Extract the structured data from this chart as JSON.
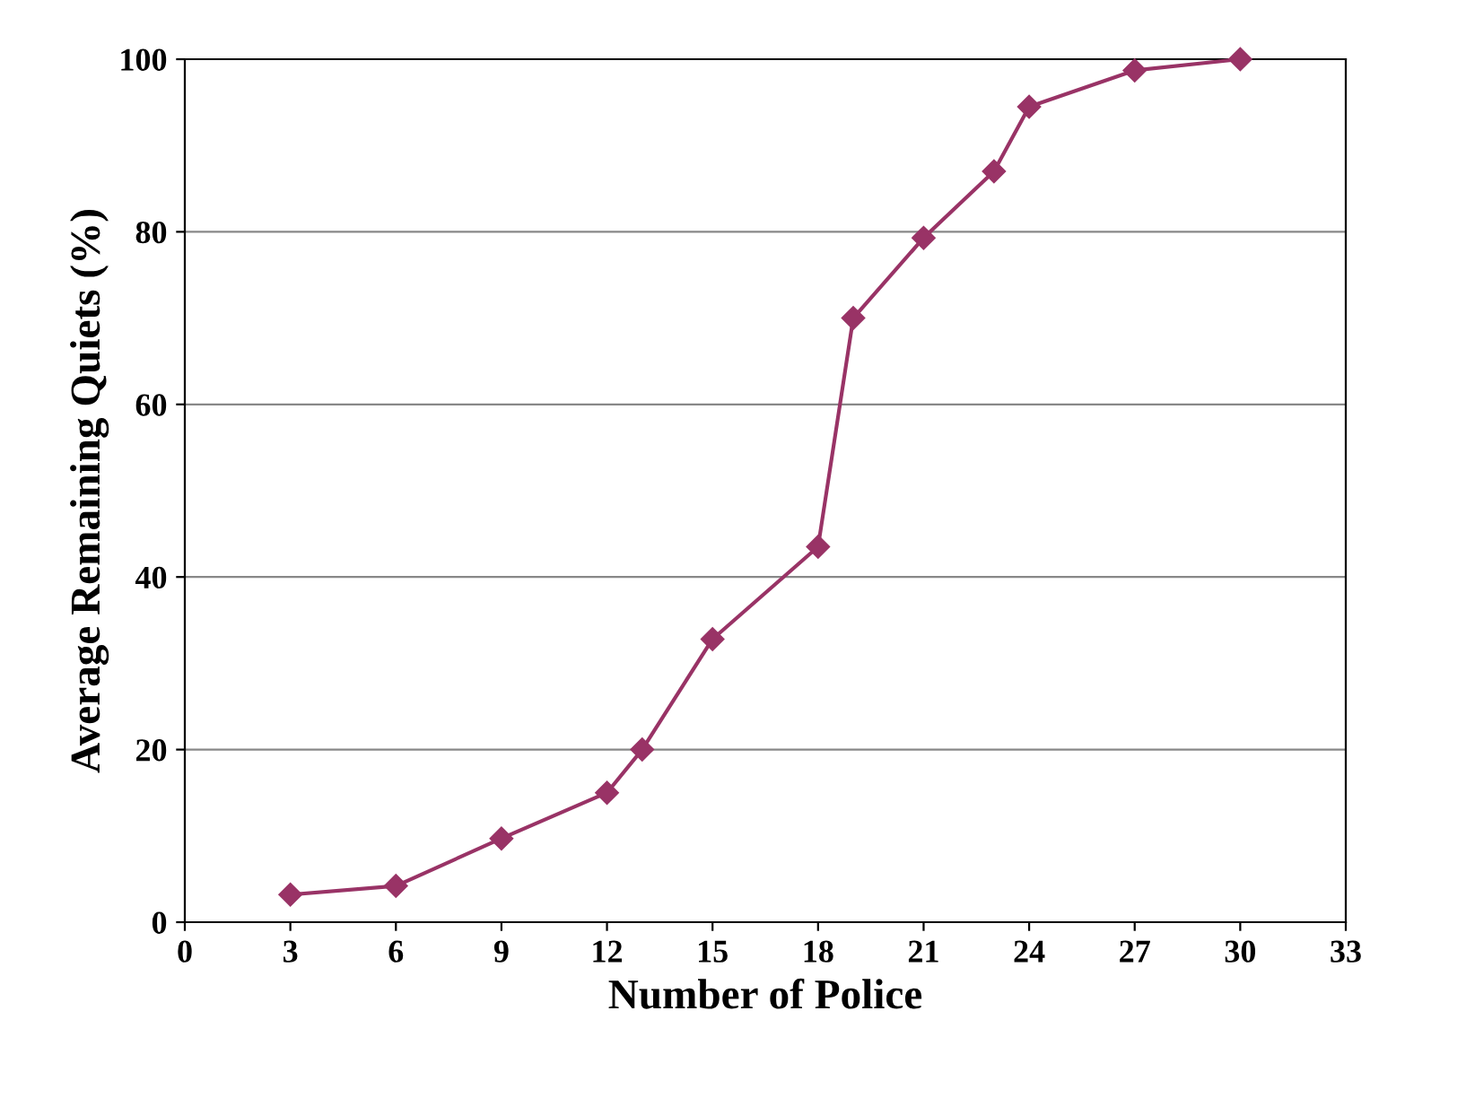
{
  "chart_data": {
    "type": "line",
    "xlabel": "Number of Police",
    "ylabel": "Average Remaining Quiets (%)",
    "x": [
      3,
      6,
      9,
      12,
      13,
      15,
      18,
      19,
      21,
      23,
      24,
      27,
      30
    ],
    "series": [
      {
        "color": "#993366",
        "values": [
          3.2,
          4.2,
          9.7,
          15,
          20,
          32.8,
          43.5,
          70,
          79.3,
          87,
          94.5,
          98.7,
          100
        ]
      }
    ],
    "xlim": [
      0,
      33
    ],
    "xticks": [
      0,
      3,
      6,
      9,
      12,
      15,
      18,
      21,
      24,
      27,
      30,
      33
    ],
    "ylim": [
      0,
      100
    ],
    "yticks": [
      0,
      20,
      40,
      60,
      80,
      100
    ],
    "grid": "y",
    "marker": "diamond",
    "line_style": "solid",
    "legend": false
  }
}
